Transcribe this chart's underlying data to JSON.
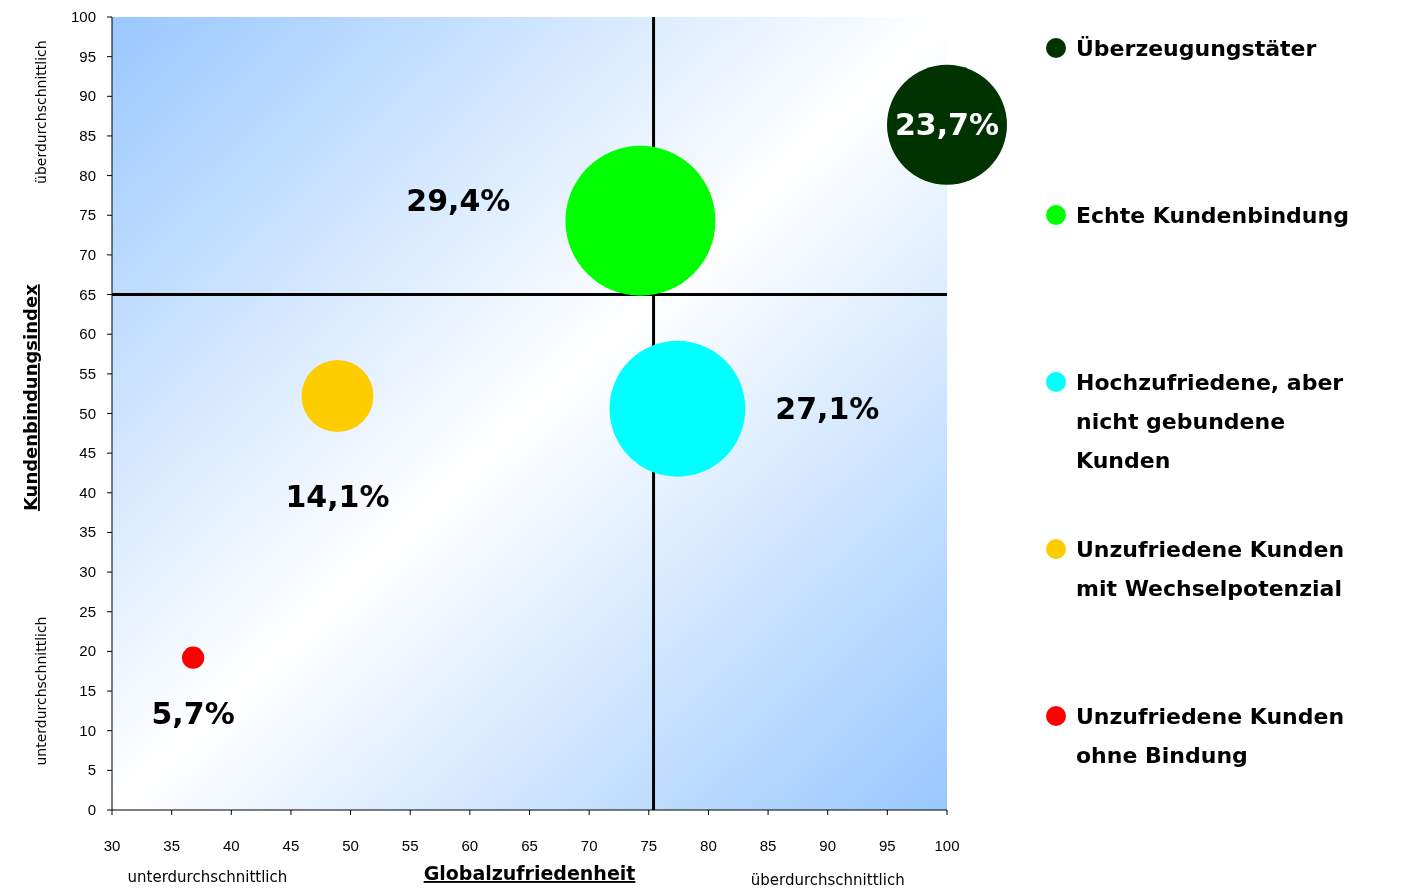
{
  "chart_data": {
    "type": "bubble",
    "xlabel": "Globalzufriedenheit",
    "ylabel": "Kundenbindungsindex",
    "xlim": [
      30,
      100
    ],
    "xticks": [
      30,
      35,
      40,
      45,
      50,
      55,
      60,
      65,
      70,
      75,
      80,
      85,
      90,
      95,
      100
    ],
    "ylim": [
      0,
      100
    ],
    "yticks": [
      0,
      5,
      10,
      15,
      20,
      25,
      30,
      35,
      40,
      45,
      50,
      55,
      60,
      65,
      70,
      75,
      80,
      85,
      90,
      95,
      100
    ],
    "grid": false,
    "legend": "right",
    "ref_lines": [
      {
        "axis": "x",
        "value": 75.4,
        "color": "#000000"
      },
      {
        "axis": "y",
        "value": 65,
        "color": "#000000"
      }
    ],
    "annotations": [
      "überdurchschnittlich",
      "unterdurchschnittlich",
      "unterdurchschnittlich",
      "überdurchschnittlich",
      "23,7%",
      "29,4%",
      "27,1%",
      "14,1%",
      "5,7%"
    ],
    "series": [
      {
        "name": "Überzeugungstäter",
        "color": "#003300",
        "x": [
          100
        ],
        "values": [
          86.4
        ],
        "sizes": [
          0.64
        ]
      },
      {
        "name": "Echte Kundenbindung",
        "color": "#00ff00",
        "x": [
          74.3
        ],
        "values": [
          74.3
        ],
        "sizes": [
          1
        ]
      },
      {
        "name": "Hochzufriedene, aber nicht gebundene Kunden",
        "color": "#00ffff",
        "x": [
          77.4
        ],
        "values": [
          50.6
        ],
        "sizes": [
          0.82
        ]
      },
      {
        "name": "Unzufriedene Kunden mit Wechselpotenzial",
        "color": "#ffcc00",
        "x": [
          48.9
        ],
        "values": [
          52.2
        ],
        "sizes": [
          0.23
        ]
      },
      {
        "name": "Unzufriedene Kunden ohne Bindung",
        "color": "#ff0000",
        "x": [
          36.8
        ],
        "values": [
          19.2
        ],
        "sizes": [
          0.022
        ]
      }
    ]
  }
}
